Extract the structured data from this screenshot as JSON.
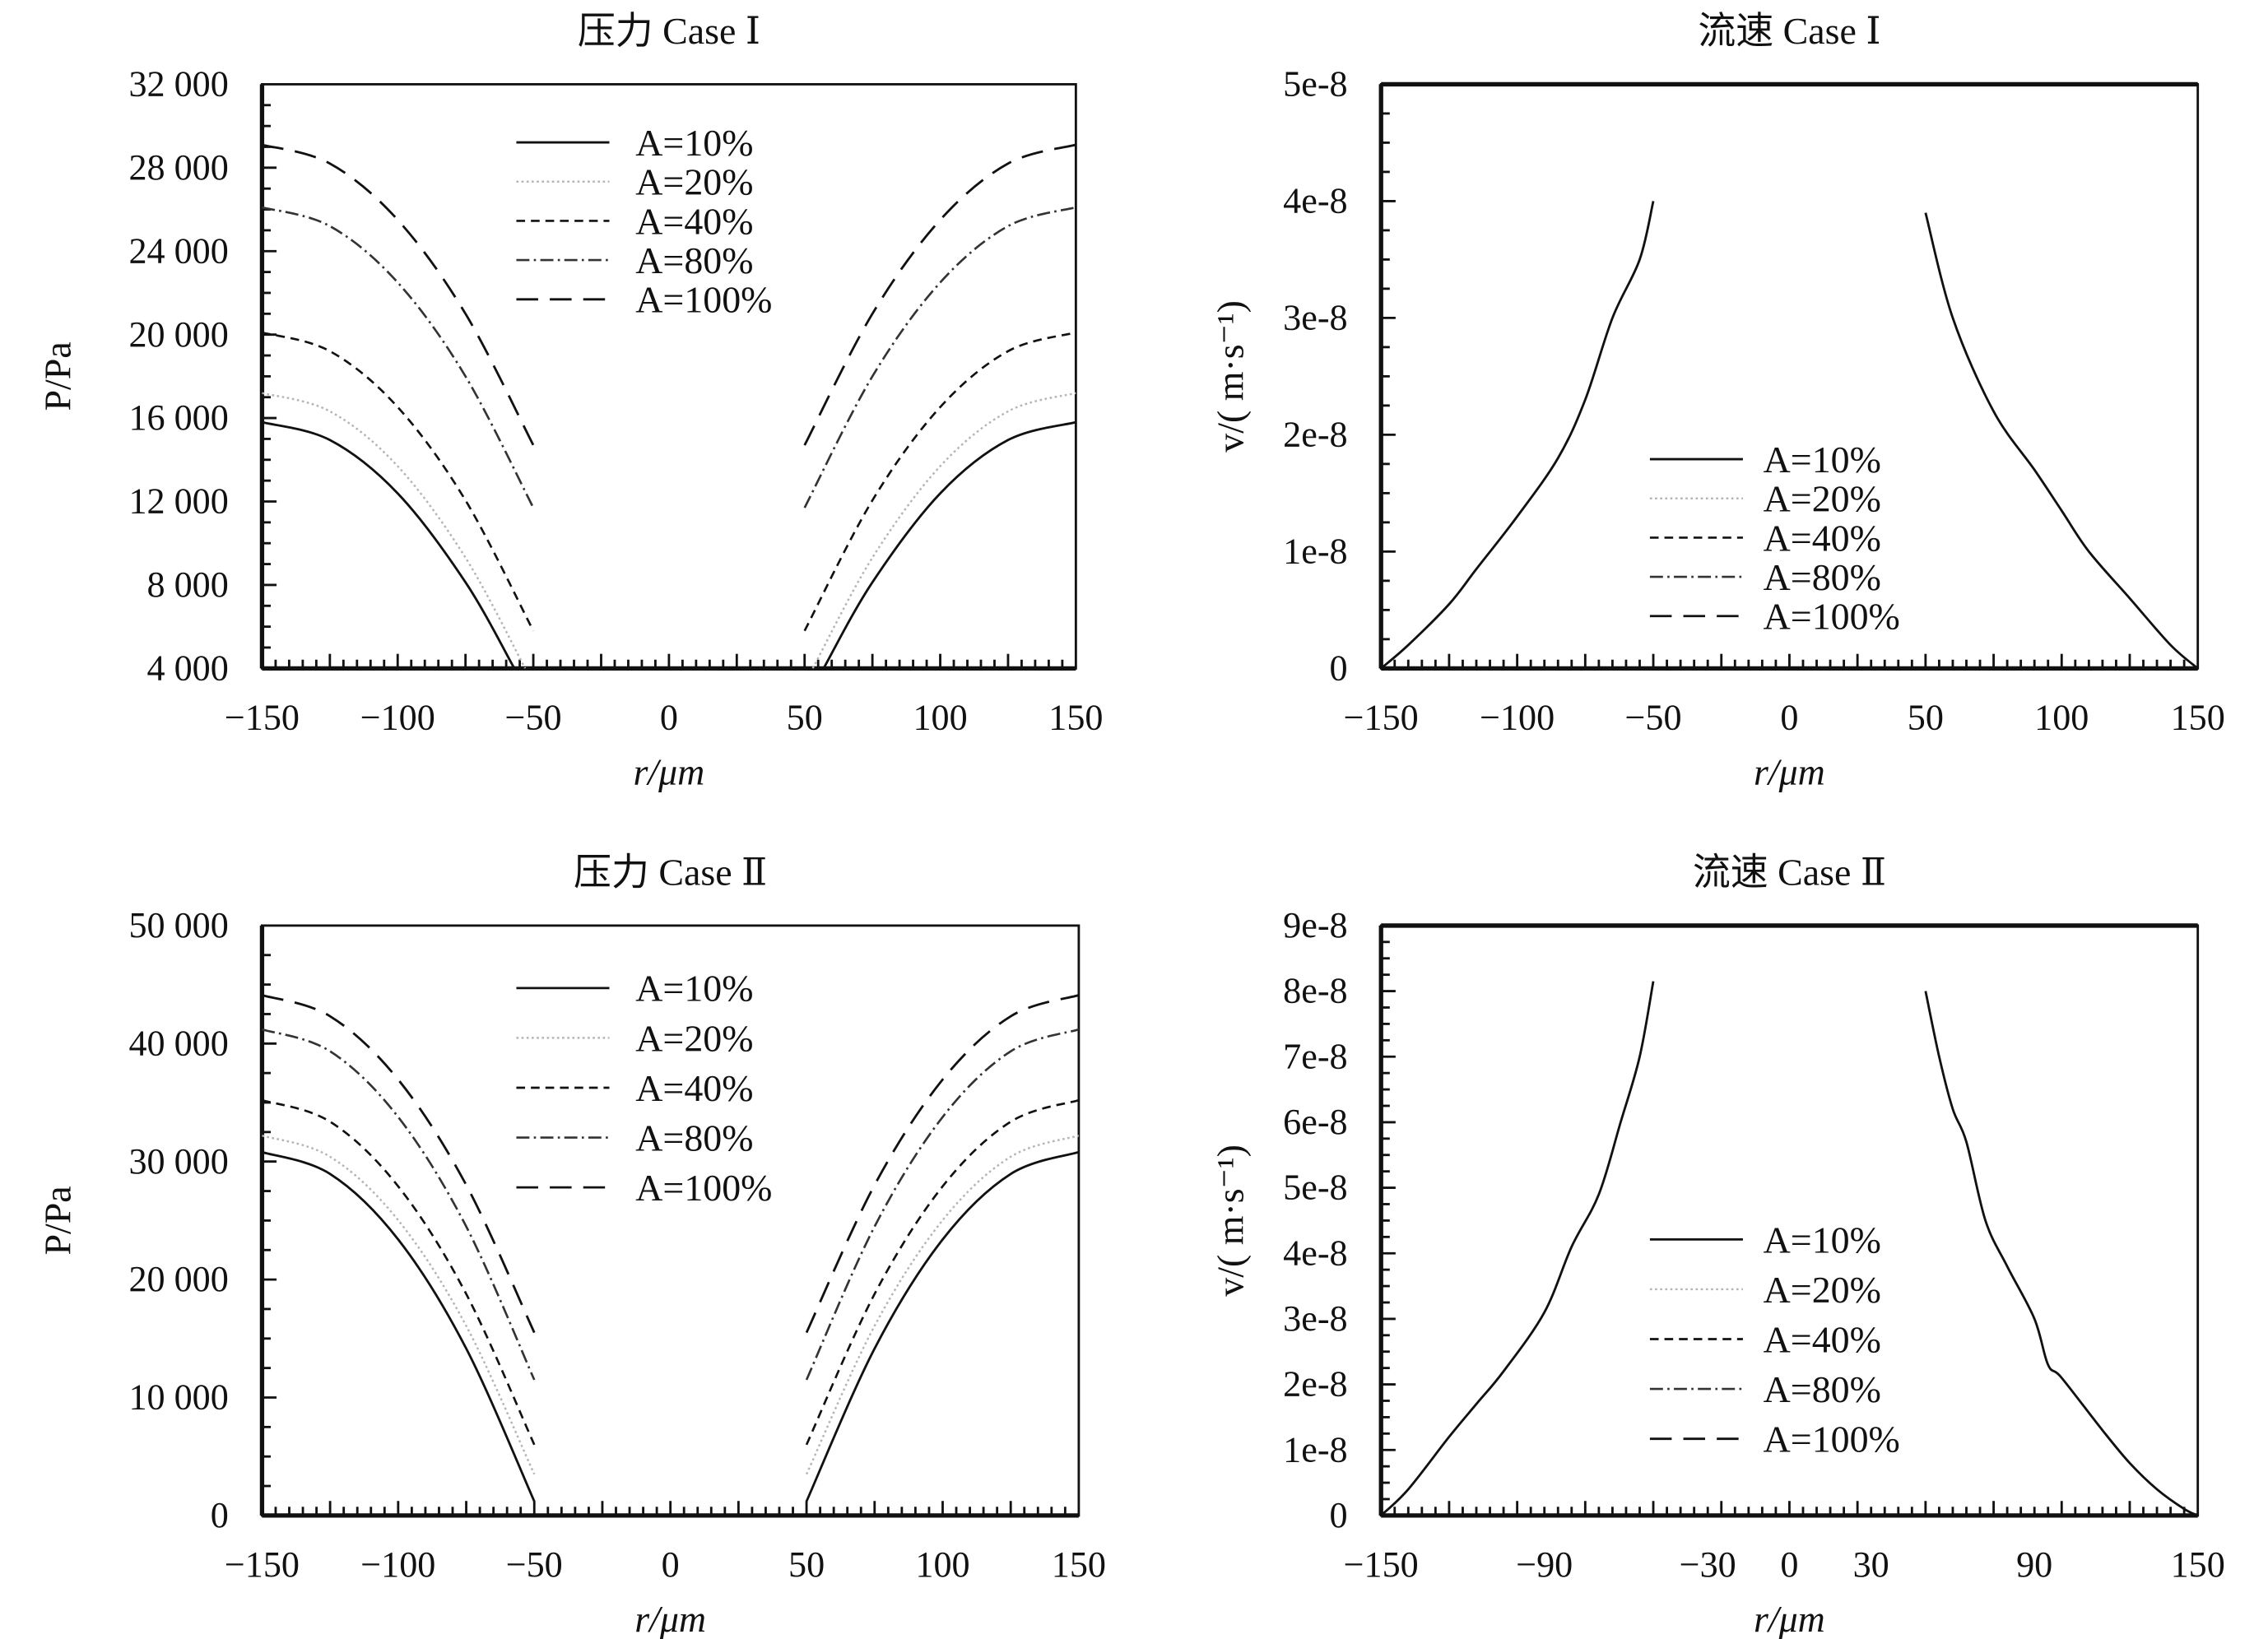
{
  "chart_data": [
    {
      "type": "line",
      "title": "压力 Case Ⅰ",
      "xlabel": "r/μm",
      "ylabel": "P/Pa",
      "xlim": [
        -150,
        150
      ],
      "ylim": [
        4000,
        32000
      ],
      "xticks": [
        -150,
        -100,
        -50,
        0,
        50,
        100,
        150
      ],
      "xtick_labels": [
        "−150",
        "−100",
        "−50",
        "0",
        "50",
        "100",
        "150"
      ],
      "yticks": [
        4000,
        8000,
        12000,
        16000,
        20000,
        24000,
        28000,
        32000
      ],
      "ytick_labels": [
        "4 000",
        "8 000",
        "12 000",
        "16 000",
        "20 000",
        "24 000",
        "28 000",
        "32 000"
      ],
      "legend": "top-center",
      "series": [
        {
          "name": "A=10%",
          "segments": [
            {
              "x": [
                -150,
                -125,
                -100,
                -75,
                -57
              ],
              "y": [
                15800,
                14947,
                12390,
                8128,
                4000
              ]
            },
            {
              "x": [
                57,
                75,
                100,
                125,
                150
              ],
              "y": [
                4000,
                8128,
                12390,
                14947,
                15800
              ]
            }
          ]
        },
        {
          "name": "A=20%",
          "segments": [
            {
              "x": [
                -150,
                -125,
                -100,
                -75,
                -53
              ],
              "y": [
                17200,
                16323,
                13693,
                9308,
                4000
              ]
            },
            {
              "x": [
                53,
                75,
                100,
                125,
                150
              ],
              "y": [
                4000,
                9308,
                13693,
                16323,
                17200
              ]
            }
          ]
        },
        {
          "name": "A=40%",
          "segments": [
            {
              "x": [
                -150,
                -125,
                -100,
                -75,
                -50
              ],
              "y": [
                20100,
                19206,
                16525,
                12056,
                5800
              ]
            },
            {
              "x": [
                50,
                75,
                100,
                125,
                150
              ],
              "y": [
                5800,
                12056,
                16525,
                19206,
                20100
              ]
            }
          ]
        },
        {
          "name": "A=80%",
          "segments": [
            {
              "x": [
                -150,
                -125,
                -100,
                -75,
                -50
              ],
              "y": [
                26100,
                25200,
                22500,
                18000,
                11700
              ]
            },
            {
              "x": [
                50,
                75,
                100,
                125,
                150
              ],
              "y": [
                11700,
                18000,
                22500,
                25200,
                26100
              ]
            }
          ]
        },
        {
          "name": "A=100%",
          "segments": [
            {
              "x": [
                -150,
                -125,
                -100,
                -75,
                -50
              ],
              "y": [
                29100,
                28200,
                25500,
                21000,
                14700
              ]
            },
            {
              "x": [
                50,
                75,
                100,
                125,
                150
              ],
              "y": [
                14700,
                21000,
                25500,
                28200,
                29100
              ]
            }
          ]
        }
      ]
    },
    {
      "type": "line",
      "title": "流速 Case Ⅰ",
      "xlabel": "r/μm",
      "ylabel": "v/( m·s⁻¹)",
      "xlim": [
        -150,
        150
      ],
      "ylim": [
        0,
        5e-08
      ],
      "xticks": [
        -150,
        -100,
        -50,
        0,
        50,
        100,
        150
      ],
      "xtick_labels": [
        "−150",
        "−100",
        "−50",
        "0",
        "50",
        "100",
        "150"
      ],
      "yticks": [
        0,
        1e-08,
        2e-08,
        3e-08,
        4e-08,
        5e-08
      ],
      "ytick_labels": [
        "0",
        "1e-8",
        "2e-8",
        "3e-8",
        "4e-8",
        "5e-8"
      ],
      "legend": "center",
      "series": [
        {
          "name": "A=10%",
          "segments": [
            {
              "x": [
                -150,
                -140,
                -125,
                -115,
                -100,
                -85,
                -75,
                -65,
                -55,
                -50
              ],
              "y": [
                0,
                2e-09,
                5.5e-09,
                8.5e-09,
                1.3e-08,
                1.8e-08,
                2.3e-08,
                3e-08,
                3.5e-08,
                4e-08
              ]
            },
            {
              "x": [
                50,
                60,
                75,
                90,
                100,
                110,
                125,
                140,
                150
              ],
              "y": [
                3.9e-08,
                3e-08,
                2.2e-08,
                1.7e-08,
                1.35e-08,
                1e-08,
                6e-09,
                2e-09,
                0
              ]
            }
          ]
        },
        {
          "name": "A=20%",
          "segments": []
        },
        {
          "name": "A=40%",
          "segments": []
        },
        {
          "name": "A=80%",
          "segments": []
        },
        {
          "name": "A=100%",
          "segments": []
        }
      ]
    },
    {
      "type": "line",
      "title": "压力 Case Ⅱ",
      "xlabel": "r/μm",
      "ylabel": "P/Pa",
      "xlim": [
        -150,
        150
      ],
      "ylim": [
        0,
        50000
      ],
      "xticks": [
        -150,
        -100,
        -50,
        0,
        50,
        100,
        150
      ],
      "xtick_labels": [
        "−150",
        "−100",
        "−50",
        "0",
        "50",
        "100",
        "150"
      ],
      "yticks": [
        0,
        10000,
        20000,
        30000,
        40000,
        50000
      ],
      "ytick_labels": [
        "0",
        "10 000",
        "20 000",
        "30 000",
        "40 000",
        "50 000"
      ],
      "legend": "top-center",
      "series": [
        {
          "name": "A=10%",
          "segments": [
            {
              "x": [
                -150,
                -125,
                -100,
                -75,
                -50
              ],
              "y": [
                30800,
                28950,
                23400,
                14150,
                1200
              ]
            },
            {
              "x": [
                50,
                75,
                100,
                125,
                150
              ],
              "y": [
                1200,
                14150,
                23400,
                28950,
                30800
              ]
            }
          ]
        },
        {
          "name": "A=20%",
          "segments": [
            {
              "x": [
                -150,
                -125,
                -100,
                -75,
                -50
              ],
              "y": [
                32200,
                30406,
                25030,
                16070,
                3500
              ]
            },
            {
              "x": [
                50,
                75,
                100,
                125,
                150
              ],
              "y": [
                3500,
                16070,
                25030,
                30406,
                32200
              ]
            }
          ]
        },
        {
          "name": "A=40%",
          "segments": [
            {
              "x": [
                -150,
                -125,
                -100,
                -75,
                -50
              ],
              "y": [
                35200,
                33375,
                27900,
                18775,
                6000
              ]
            },
            {
              "x": [
                50,
                75,
                100,
                125,
                150
              ],
              "y": [
                6000,
                18775,
                27900,
                33375,
                35200
              ]
            }
          ]
        },
        {
          "name": "A=80%",
          "segments": [
            {
              "x": [
                -150,
                -125,
                -100,
                -75,
                -50
              ],
              "y": [
                41200,
                39344,
                33775,
                24494,
                11500
              ]
            },
            {
              "x": [
                50,
                75,
                100,
                125,
                150
              ],
              "y": [
                11500,
                24494,
                33775,
                39344,
                41200
              ]
            }
          ]
        },
        {
          "name": "A=100%",
          "segments": [
            {
              "x": [
                -150,
                -125,
                -100,
                -75,
                -50
              ],
              "y": [
                44100,
                42313,
                36950,
                28013,
                15500
              ]
            },
            {
              "x": [
                50,
                75,
                100,
                125,
                150
              ],
              "y": [
                15500,
                28013,
                36950,
                42313,
                44100
              ]
            }
          ]
        }
      ]
    },
    {
      "type": "line",
      "title": "流速 Case Ⅱ",
      "xlabel": "r/μm",
      "ylabel": "v/( m·s⁻¹)",
      "xlim": [
        -150,
        150
      ],
      "ylim": [
        0,
        9e-08
      ],
      "xticks": [
        -150,
        -90,
        -30,
        0,
        30,
        90,
        150
      ],
      "xtick_labels": [
        "−150",
        "−90",
        "−30",
        "0",
        "30",
        "90",
        "150"
      ],
      "yticks": [
        0,
        1e-08,
        2e-08,
        3e-08,
        4e-08,
        5e-08,
        6e-08,
        7e-08,
        8e-08,
        9e-08
      ],
      "ytick_labels": [
        "0",
        "1e-8",
        "2e-8",
        "3e-8",
        "4e-8",
        "5e-8",
        "6e-8",
        "7e-8",
        "8e-8",
        "9e-8"
      ],
      "legend": "center",
      "series": [
        {
          "name": "A=10%",
          "segments": [
            {
              "x": [
                -150,
                -140,
                -125,
                -115,
                -105,
                -90,
                -80,
                -70,
                -62,
                -55,
                -50
              ],
              "y": [
                0,
                4e-09,
                1.2e-08,
                1.7e-08,
                2.2e-08,
                3.1e-08,
                4.1e-08,
                4.9e-08,
                6e-08,
                7e-08,
                8.15e-08
              ]
            },
            {
              "x": [
                50,
                55,
                60,
                65,
                72,
                80,
                90,
                95,
                100,
                115,
                125,
                135,
                145,
                150
              ],
              "y": [
                8e-08,
                7e-08,
                6.2e-08,
                5.7e-08,
                4.5e-08,
                3.8e-08,
                3e-08,
                2.3e-08,
                2.1e-08,
                1.3e-08,
                8e-09,
                4e-09,
                1e-09,
                0
              ]
            }
          ]
        },
        {
          "name": "A=20%",
          "segments": []
        },
        {
          "name": "A=40%",
          "segments": []
        },
        {
          "name": "A=80%",
          "segments": []
        },
        {
          "name": "A=100%",
          "segments": []
        }
      ]
    }
  ]
}
